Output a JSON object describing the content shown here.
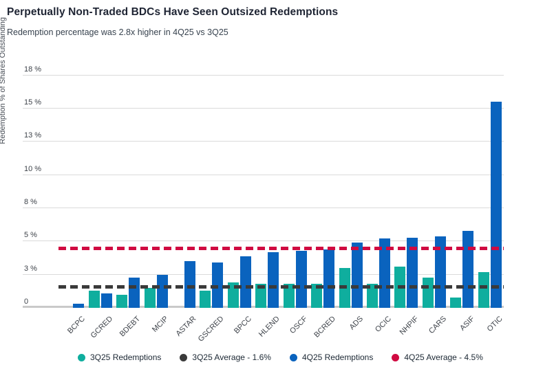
{
  "header": {
    "title": "Perpetually Non-Traded BDCs Have Seen Outsized Redemptions",
    "subtitle": "Redemption percentage was 2.8x higher in 4Q25 vs 3Q25"
  },
  "chart_data": {
    "type": "bar",
    "categories": [
      "BCPC",
      "GCRED",
      "BDEBT",
      "MCIP",
      "ASTAR",
      "GSCRED",
      "BPCC",
      "HLEND",
      "OSCF",
      "BCRED",
      "ADS",
      "OCIC",
      "NHPIF",
      "CARS",
      "ASIF",
      "OTIC"
    ],
    "series": [
      {
        "name": "3Q25 Redemptions",
        "color": "#0FAE9E",
        "values": [
          0,
          1.3,
          1.0,
          1.5,
          0,
          1.3,
          1.9,
          1.8,
          1.8,
          1.8,
          3.0,
          1.8,
          3.1,
          2.3,
          0.8,
          2.7
        ]
      },
      {
        "name": "4Q25 Redemptions",
        "color": "#0A63BE",
        "values": [
          0.3,
          1.1,
          2.3,
          2.5,
          3.5,
          3.4,
          3.9,
          4.2,
          4.3,
          4.4,
          4.9,
          5.2,
          5.3,
          5.4,
          5.8,
          15.5
        ]
      }
    ],
    "avg_lines": [
      {
        "label": "3Q25 Average - 1.6%",
        "value": 1.6,
        "color": "#3A3A3A"
      },
      {
        "label": "4Q25 Average - 4.5%",
        "value": 4.5,
        "color": "#D00A41"
      }
    ],
    "title": "Perpetually Non-Traded BDCs Have Seen Outsized Redemptions",
    "xlabel": "",
    "ylabel": "Redemption % of Shares Outstanding",
    "ylim": [
      0,
      18
    ],
    "yticks": [
      {
        "value": 0,
        "label": "0"
      },
      {
        "value": 2.5,
        "label": "3 %"
      },
      {
        "value": 5,
        "label": "5 %"
      },
      {
        "value": 7.5,
        "label": "8 %"
      },
      {
        "value": 10,
        "label": "10 %"
      },
      {
        "value": 12.5,
        "label": "13 %"
      },
      {
        "value": 15,
        "label": "15 %"
      },
      {
        "value": 17.5,
        "label": "18 %"
      }
    ],
    "grid": true,
    "legend_position": "bottom"
  },
  "legend": {
    "items": [
      {
        "label": "3Q25 Redemptions",
        "color": "#0FAE9E"
      },
      {
        "label": "3Q25 Average - 1.6%",
        "color": "#3A3A3A"
      },
      {
        "label": "4Q25 Redemptions",
        "color": "#0A63BE"
      },
      {
        "label": "4Q25 Average - 4.5%",
        "color": "#D00A41"
      }
    ]
  }
}
